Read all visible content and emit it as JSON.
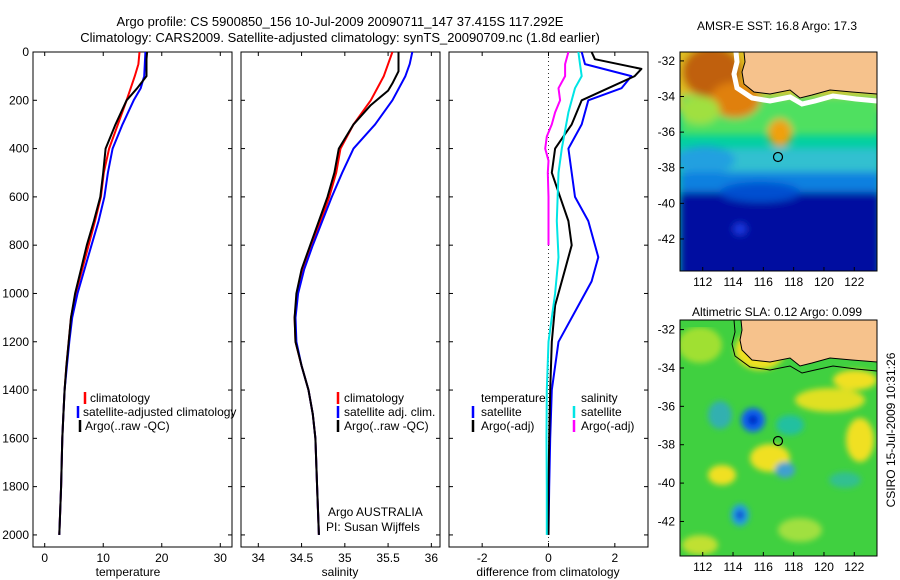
{
  "header": {
    "line1": "Argo profile: CS 5900850_156 10-Jul-2009 20090711_147 37.415S 117.292E",
    "line2": "Climatology: CARS2009. Satellite-adjusted climatology: synTS_20090709.nc (1.8d earlier)"
  },
  "footer": {
    "stamp": "CSIRO 15-Jul-2009 10:31:26"
  },
  "colors": {
    "climatology": "#ff0000",
    "satellite": "#0000ff",
    "argo": "#000000",
    "sal_satellite": "#00e5e5",
    "sal_argo": "#ff00ff",
    "land": "#f6c28c"
  },
  "chart_data": [
    {
      "type": "line",
      "xlabel": "temperature",
      "ylabel": "",
      "xlim": [
        -2,
        32
      ],
      "ylim": [
        0,
        2050
      ],
      "y_reversed": true,
      "xticks": [
        "0",
        "10",
        "20",
        "30"
      ],
      "yticks": [
        "0",
        "200",
        "400",
        "600",
        "800",
        "1000",
        "1200",
        "1400",
        "1600",
        "1800",
        "2000"
      ],
      "legend": [
        "climatology",
        "satellite-adjusted climatology",
        "Argo(..raw -QC)"
      ],
      "series": [
        {
          "name": "climatology",
          "color": "#ff0000",
          "points": [
            [
              16.2,
              0
            ],
            [
              16.0,
              50
            ],
            [
              15.4,
              100
            ],
            [
              14.0,
              200
            ],
            [
              12.5,
              300
            ],
            [
              11.0,
              400
            ],
            [
              10.1,
              500
            ],
            [
              9.6,
              600
            ],
            [
              8.6,
              700
            ],
            [
              7.5,
              800
            ],
            [
              6.4,
              900
            ],
            [
              5.3,
              1000
            ],
            [
              4.5,
              1100
            ],
            [
              4.1,
              1200
            ],
            [
              3.7,
              1300
            ],
            [
              3.4,
              1400
            ],
            [
              3.2,
              1500
            ],
            [
              3.0,
              1600
            ],
            [
              2.8,
              1800
            ],
            [
              2.5,
              2000
            ]
          ]
        },
        {
          "name": "satellite-adjusted climatology",
          "color": "#0000ff",
          "points": [
            [
              17.2,
              0
            ],
            [
              17.1,
              50
            ],
            [
              17.0,
              100
            ],
            [
              16.4,
              150
            ],
            [
              15.2,
              200
            ],
            [
              13.3,
              300
            ],
            [
              11.6,
              400
            ],
            [
              10.8,
              500
            ],
            [
              10.2,
              600
            ],
            [
              9.2,
              700
            ],
            [
              8.0,
              800
            ],
            [
              6.8,
              900
            ],
            [
              5.6,
              1000
            ],
            [
              4.7,
              1100
            ],
            [
              4.2,
              1200
            ],
            [
              3.8,
              1300
            ],
            [
              3.4,
              1400
            ],
            [
              3.2,
              1500
            ],
            [
              3.0,
              1600
            ],
            [
              2.8,
              1800
            ],
            [
              2.5,
              2000
            ]
          ]
        },
        {
          "name": "Argo(..raw -QC)",
          "color": "#000000",
          "points": [
            [
              17.5,
              0
            ],
            [
              17.4,
              30
            ],
            [
              17.4,
              100
            ],
            [
              15.8,
              150
            ],
            [
              14.0,
              200
            ],
            [
              12.1,
              300
            ],
            [
              10.4,
              400
            ],
            [
              10.0,
              500
            ],
            [
              9.5,
              600
            ],
            [
              8.4,
              700
            ],
            [
              7.2,
              800
            ],
            [
              6.2,
              900
            ],
            [
              5.2,
              1000
            ],
            [
              4.5,
              1100
            ],
            [
              4.1,
              1200
            ],
            [
              3.7,
              1300
            ],
            [
              3.4,
              1400
            ],
            [
              3.2,
              1500
            ],
            [
              3.0,
              1600
            ],
            [
              2.8,
              1800
            ],
            [
              2.5,
              2000
            ]
          ]
        }
      ]
    },
    {
      "type": "line",
      "xlabel": "salinity",
      "ylabel": "",
      "xlim": [
        33.8,
        36.1
      ],
      "ylim": [
        0,
        2050
      ],
      "y_reversed": true,
      "xticks": [
        "34",
        "34.5",
        "35",
        "35.5",
        "36"
      ],
      "legend": [
        "climatology",
        "satellite adj. clim.",
        "Argo(..raw -QC)"
      ],
      "annotation": [
        "Argo AUSTRALIA",
        "PI: Susan Wijffels"
      ],
      "series": [
        {
          "name": "climatology",
          "color": "#ff0000",
          "points": [
            [
              35.55,
              0
            ],
            [
              35.5,
              50
            ],
            [
              35.45,
              100
            ],
            [
              35.3,
              200
            ],
            [
              35.1,
              300
            ],
            [
              34.95,
              400
            ],
            [
              34.9,
              500
            ],
            [
              34.82,
              600
            ],
            [
              34.72,
              700
            ],
            [
              34.62,
              800
            ],
            [
              34.52,
              900
            ],
            [
              34.45,
              1000
            ],
            [
              34.42,
              1100
            ],
            [
              34.43,
              1200
            ],
            [
              34.5,
              1300
            ],
            [
              34.58,
              1400
            ],
            [
              34.63,
              1500
            ],
            [
              34.66,
              1600
            ],
            [
              34.68,
              1800
            ],
            [
              34.7,
              2000
            ]
          ]
        },
        {
          "name": "satellite adj. clim.",
          "color": "#0000ff",
          "points": [
            [
              35.78,
              0
            ],
            [
              35.75,
              50
            ],
            [
              35.7,
              100
            ],
            [
              35.55,
              200
            ],
            [
              35.35,
              300
            ],
            [
              35.1,
              400
            ],
            [
              34.97,
              500
            ],
            [
              34.85,
              600
            ],
            [
              34.74,
              700
            ],
            [
              34.63,
              800
            ],
            [
              34.53,
              900
            ],
            [
              34.46,
              1000
            ],
            [
              34.43,
              1100
            ],
            [
              34.44,
              1200
            ],
            [
              34.5,
              1300
            ],
            [
              34.58,
              1400
            ],
            [
              34.63,
              1500
            ],
            [
              34.66,
              1600
            ],
            [
              34.68,
              1800
            ],
            [
              34.7,
              2000
            ]
          ]
        },
        {
          "name": "Argo(..raw -QC)",
          "color": "#000000",
          "points": [
            [
              35.62,
              0
            ],
            [
              35.62,
              80
            ],
            [
              35.55,
              130
            ],
            [
              35.5,
              160
            ],
            [
              35.3,
              220
            ],
            [
              35.1,
              300
            ],
            [
              34.93,
              400
            ],
            [
              34.88,
              500
            ],
            [
              34.8,
              600
            ],
            [
              34.7,
              700
            ],
            [
              34.6,
              800
            ],
            [
              34.5,
              900
            ],
            [
              34.44,
              1000
            ],
            [
              34.42,
              1100
            ],
            [
              34.43,
              1200
            ],
            [
              34.5,
              1300
            ],
            [
              34.58,
              1400
            ],
            [
              34.63,
              1500
            ],
            [
              34.66,
              1600
            ],
            [
              34.68,
              1800
            ],
            [
              34.7,
              2000
            ]
          ]
        }
      ]
    },
    {
      "type": "line",
      "xlabel": "difference from climatology",
      "ylabel": "",
      "xlim": [
        -3,
        3
      ],
      "ylim": [
        0,
        2050
      ],
      "y_reversed": true,
      "xticks": [
        "-2",
        "0",
        "2"
      ],
      "legend_temperature": [
        "temperature",
        "satellite",
        "Argo(-adj)"
      ],
      "legend_salinity": [
        "salinity",
        "satellite",
        "Argo(-adj)"
      ],
      "series": [
        {
          "name": "temperature satellite",
          "color": "#0000ff",
          "points": [
            [
              1.0,
              0
            ],
            [
              1.1,
              50
            ],
            [
              2.5,
              100
            ],
            [
              2.2,
              150
            ],
            [
              1.2,
              200
            ],
            [
              1.0,
              300
            ],
            [
              0.6,
              400
            ],
            [
              0.7,
              500
            ],
            [
              0.8,
              600
            ],
            [
              1.2,
              700
            ],
            [
              1.5,
              850
            ],
            [
              1.3,
              950
            ],
            [
              0.9,
              1050
            ],
            [
              0.3,
              1200
            ],
            [
              0.1,
              1400
            ],
            [
              0.05,
              1600
            ],
            [
              0.02,
              1800
            ],
            [
              0.0,
              2000
            ]
          ]
        },
        {
          "name": "temperature Argo(-adj)",
          "color": "#000000",
          "points": [
            [
              1.3,
              0
            ],
            [
              1.4,
              30
            ],
            [
              2.8,
              70
            ],
            [
              2.6,
              100
            ],
            [
              1.8,
              150
            ],
            [
              1.0,
              200
            ],
            [
              0.7,
              300
            ],
            [
              0.2,
              400
            ],
            [
              0.1,
              500
            ],
            [
              0.35,
              600
            ],
            [
              0.6,
              700
            ],
            [
              0.7,
              800
            ],
            [
              0.5,
              900
            ],
            [
              0.2,
              1050
            ],
            [
              0.1,
              1200
            ],
            [
              0.05,
              1400
            ],
            [
              0.02,
              1600
            ],
            [
              0.0,
              1800
            ],
            [
              0.0,
              2000
            ]
          ]
        },
        {
          "name": "salinity satellite",
          "color": "#00e5e5",
          "points": [
            [
              0.9,
              0
            ],
            [
              0.95,
              50
            ],
            [
              1.0,
              100
            ],
            [
              0.8,
              150
            ],
            [
              0.6,
              250
            ],
            [
              0.4,
              400
            ],
            [
              0.3,
              500
            ],
            [
              0.25,
              700
            ],
            [
              0.3,
              850
            ],
            [
              0.2,
              1000
            ],
            [
              0.0,
              1200
            ],
            [
              -0.05,
              1400
            ],
            [
              -0.06,
              1600
            ],
            [
              -0.05,
              1800
            ],
            [
              -0.05,
              2000
            ]
          ]
        },
        {
          "name": "salinity Argo(-adj)",
          "color": "#ff00ff",
          "points": [
            [
              0.6,
              0
            ],
            [
              0.5,
              50
            ],
            [
              0.5,
              100
            ],
            [
              0.3,
              150
            ],
            [
              0.35,
              200
            ],
            [
              0.2,
              250
            ],
            [
              0.1,
              300
            ],
            [
              -0.05,
              350
            ],
            [
              -0.1,
              400
            ],
            [
              0.0,
              450
            ],
            [
              -0.02,
              500
            ],
            [
              0.0,
              600
            ],
            [
              0.0,
              700
            ],
            [
              0.0,
              800
            ]
          ]
        }
      ]
    },
    {
      "type": "heatmap",
      "title": "AMSR-E SST: 16.8 Argo: 17.3",
      "xlim": [
        110.5,
        123.5
      ],
      "ylim": [
        -43.8,
        -31.5
      ],
      "xticks": [
        "112",
        "114",
        "116",
        "118",
        "120",
        "122"
      ],
      "yticks": [
        "-32",
        "-34",
        "-36",
        "-38",
        "-40",
        "-42"
      ],
      "marker": [
        117.292,
        -37.415
      ]
    },
    {
      "type": "heatmap",
      "title": "Altimetric SLA: 0.12 Argo: 0.099",
      "xlim": [
        110.5,
        123.5
      ],
      "ylim": [
        -43.8,
        -31.5
      ],
      "xticks": [
        "112",
        "114",
        "116",
        "118",
        "120",
        "122"
      ],
      "yticks": [
        "-32",
        "-34",
        "-36",
        "-38",
        "-40",
        "-42"
      ],
      "marker": [
        117.292,
        -37.415
      ]
    }
  ]
}
